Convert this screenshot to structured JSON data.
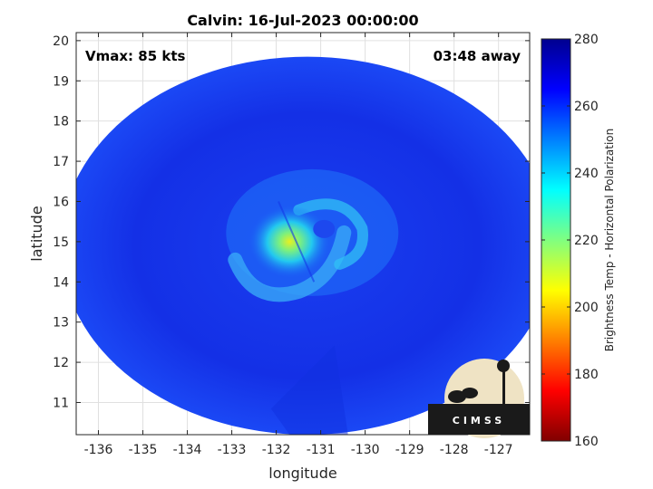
{
  "chart_data": {
    "type": "heatmap",
    "title": "Calvin: 16-Jul-2023 00:00:00",
    "xlabel": "longitude",
    "ylabel": "latitude",
    "xlim": [
      -136.5,
      -126.3
    ],
    "ylim": [
      10.2,
      20.2
    ],
    "x_ticks": [
      "-136",
      "-135",
      "-134",
      "-133",
      "-132",
      "-131",
      "-130",
      "-129",
      "-128",
      "-127"
    ],
    "y_ticks": [
      "20",
      "19",
      "18",
      "17",
      "16",
      "15",
      "14",
      "13",
      "12",
      "11"
    ],
    "x_tick_values": [
      -136,
      -135,
      -134,
      -133,
      -132,
      -131,
      -130,
      -129,
      -128,
      -127
    ],
    "y_tick_values": [
      20,
      19,
      18,
      17,
      16,
      15,
      14,
      13,
      12,
      11
    ],
    "annotations": {
      "vmax": "Vmax: 85 kts",
      "time_away": "03:48 away"
    },
    "colorbar": {
      "label": "Brightness Temp - Horizontal Polarization",
      "ticks": [
        "280",
        "260",
        "240",
        "220",
        "200",
        "180",
        "160"
      ],
      "tick_values": [
        280,
        260,
        240,
        220,
        200,
        180,
        160
      ],
      "range": [
        160,
        280
      ]
    },
    "field": {
      "swath_center": [
        -131.3,
        14.9
      ],
      "swath_radius_deg": [
        5.55,
        4.7
      ],
      "background_temp": 262,
      "storm_center": [
        -131.7,
        15.0
      ],
      "warmest_temp": 205
    },
    "logo": "CIMSS"
  }
}
